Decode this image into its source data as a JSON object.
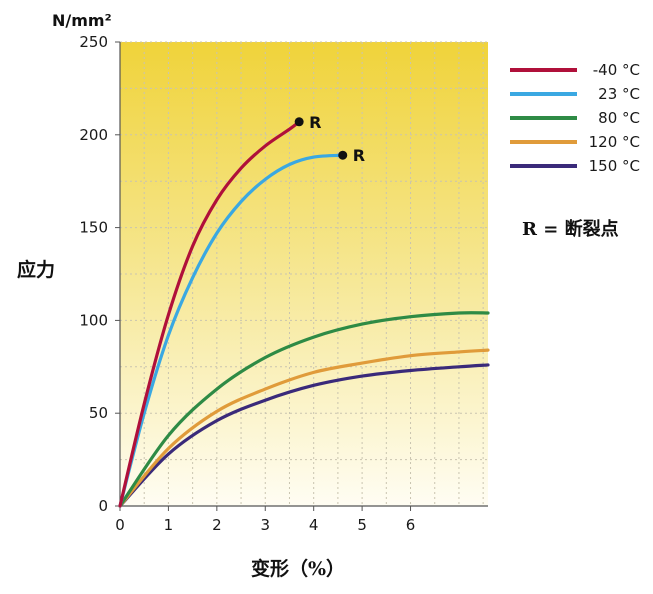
{
  "chart_data": {
    "type": "line",
    "ylabel": "应力",
    "y_unit": "N/mm²",
    "xlabel": "变形（%）",
    "xlim": [
      0,
      7.6
    ],
    "ylim": [
      0,
      250
    ],
    "x_ticks": [
      0,
      1,
      2,
      3,
      4,
      5,
      6
    ],
    "y_ticks": [
      0,
      50,
      100,
      150,
      200,
      250
    ],
    "grid": true,
    "background": "yellow-gradient",
    "legend_position": "right",
    "note": "R = 断裂点",
    "series": [
      {
        "name": "-40 °C",
        "color": "#b0103a",
        "x": [
          0,
          0.5,
          1,
          1.5,
          2,
          2.5,
          3,
          3.5,
          3.7
        ],
        "y": [
          0,
          55,
          103,
          140,
          165,
          182,
          194,
          203,
          207
        ],
        "break_label": "R"
      },
      {
        "name": "23 °C",
        "color": "#3aa8e2",
        "x": [
          0,
          0.5,
          1,
          1.5,
          2,
          2.5,
          3,
          3.5,
          4,
          4.6
        ],
        "y": [
          0,
          50,
          92,
          123,
          147,
          164,
          176,
          184,
          188,
          189
        ],
        "break_label": "R"
      },
      {
        "name": "80 °C",
        "color": "#2e8b45",
        "x": [
          0,
          1,
          2,
          3,
          4,
          5,
          6,
          7,
          7.6
        ],
        "y": [
          0,
          38,
          63,
          80,
          91,
          98,
          102,
          104,
          104
        ]
      },
      {
        "name": "120 °C",
        "color": "#e09b3a",
        "x": [
          0,
          1,
          2,
          3,
          4,
          5,
          6,
          7,
          7.6
        ],
        "y": [
          0,
          31,
          51,
          63,
          72,
          77,
          81,
          83,
          84
        ]
      },
      {
        "name": "150 °C",
        "color": "#3a2a7a",
        "x": [
          0,
          1,
          2,
          3,
          4,
          5,
          6,
          7,
          7.6
        ],
        "y": [
          0,
          28,
          46,
          57,
          65,
          70,
          73,
          75,
          76
        ]
      }
    ]
  }
}
